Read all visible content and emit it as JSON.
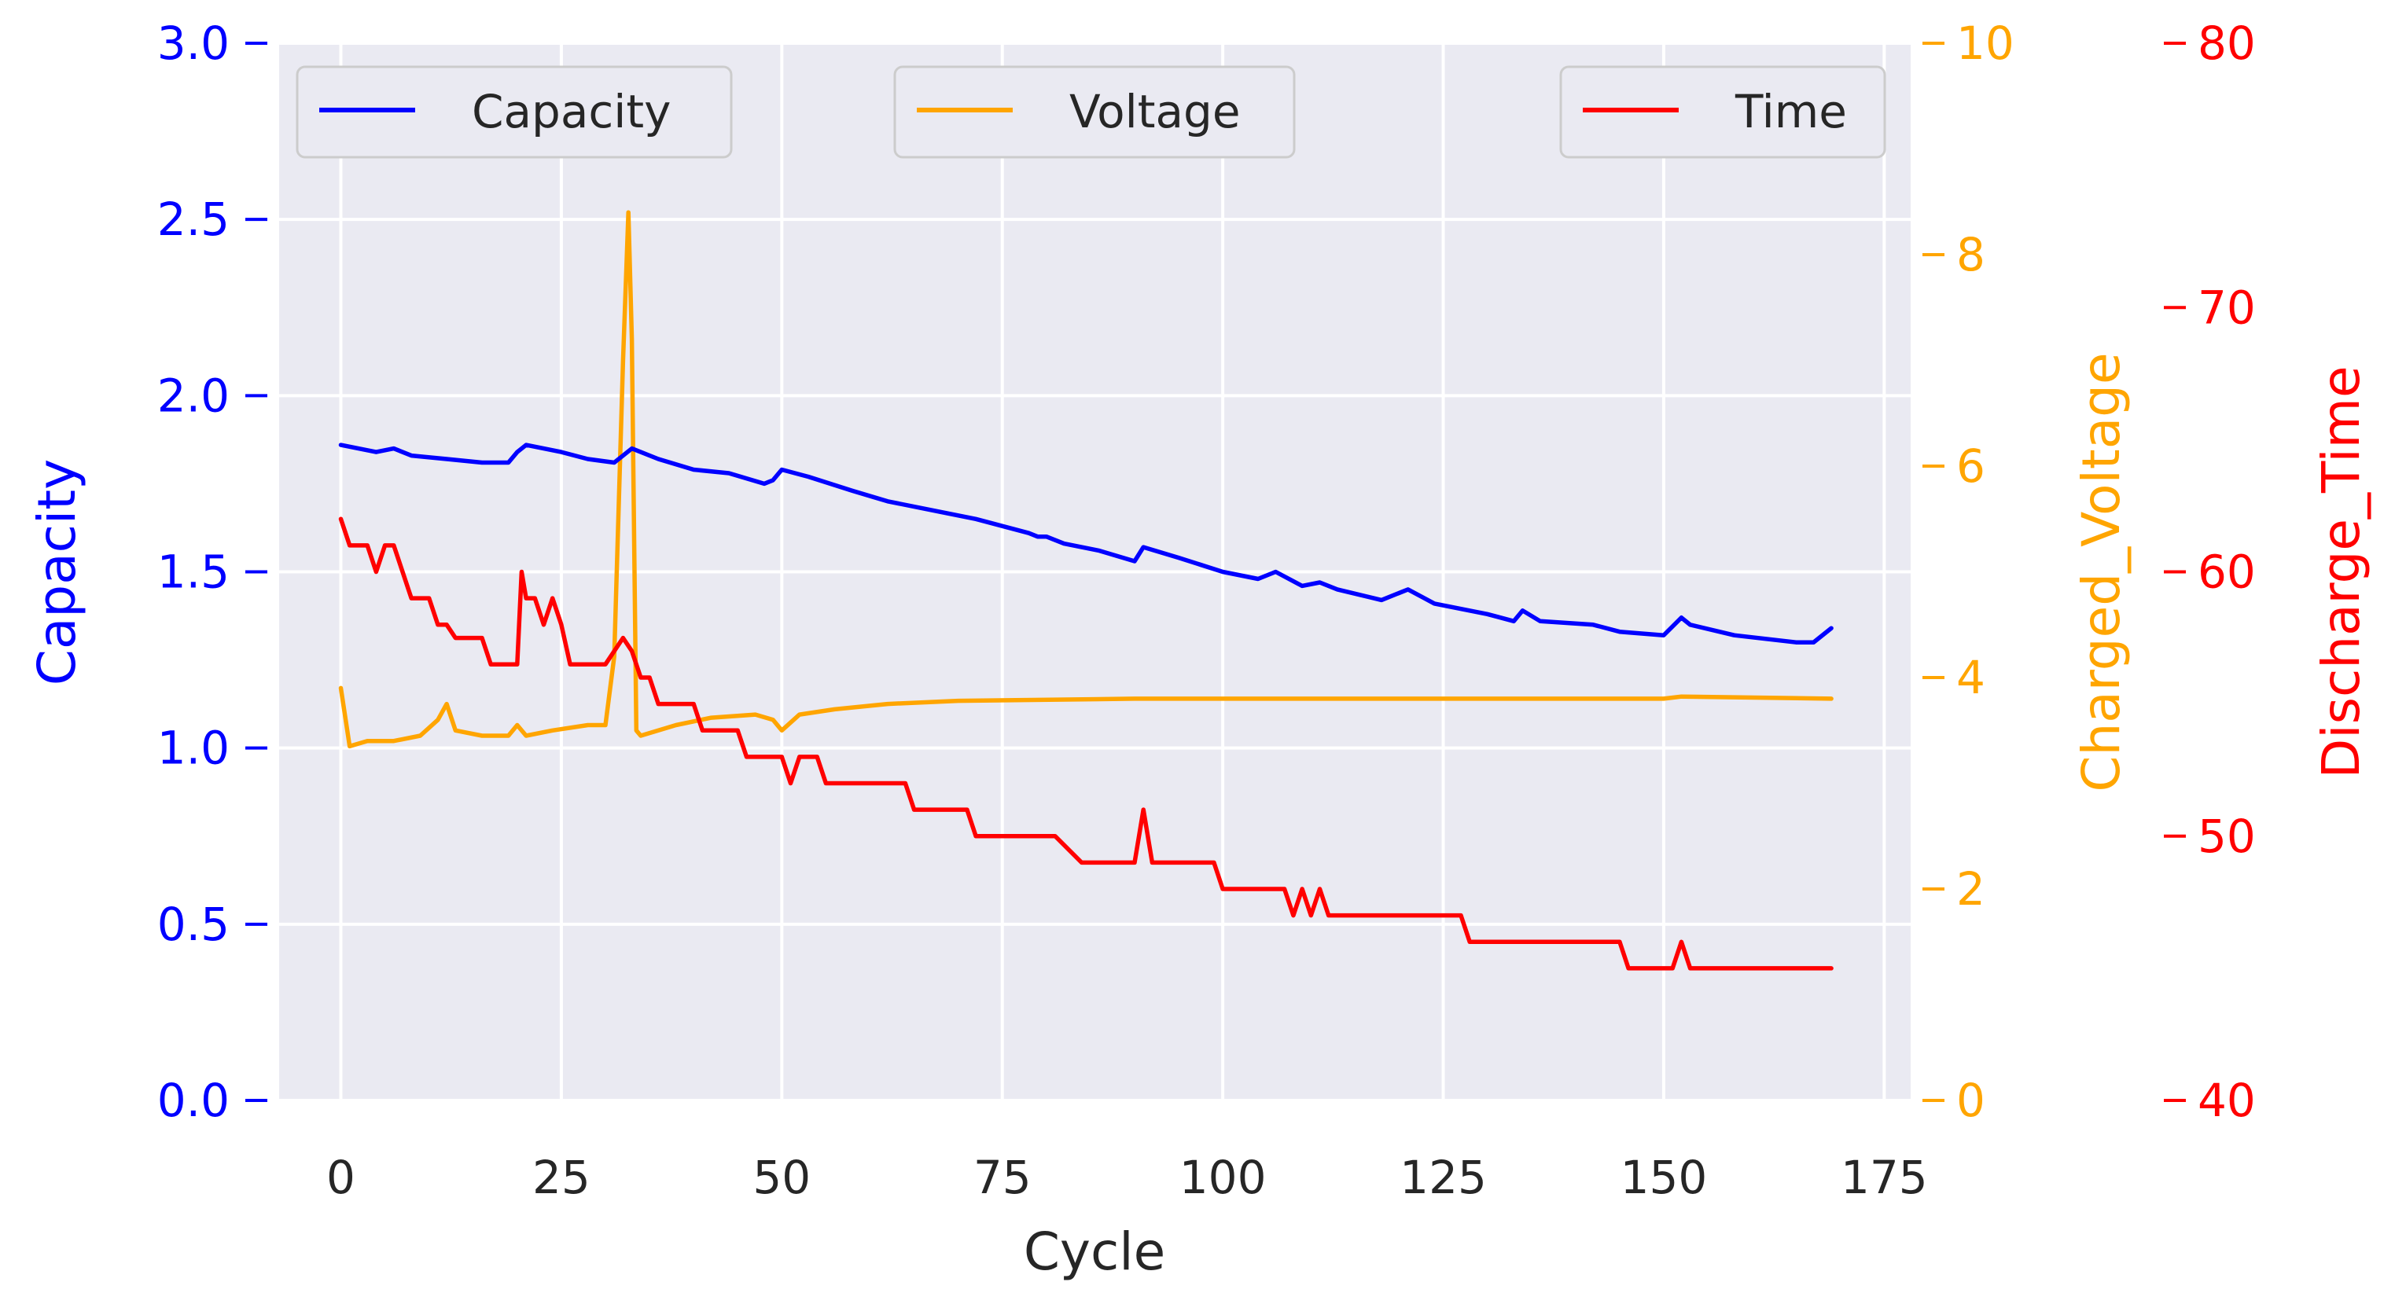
{
  "chart_data": {
    "type": "line",
    "xlabel": "Cycle",
    "xlim": [
      -7,
      178
    ],
    "xticks": [
      0,
      25,
      50,
      75,
      100,
      125,
      150,
      175
    ],
    "axes": {
      "capacity": {
        "label": "Capacity",
        "ylim": [
          0,
          3.0
        ],
        "ticks": [
          "0.0",
          "0.5",
          "1.0",
          "1.5",
          "2.0",
          "2.5",
          "3.0"
        ],
        "color": "#0000ff"
      },
      "voltage": {
        "label": "Charged_Voltage",
        "ylim": [
          0,
          10
        ],
        "ticks": [
          "0",
          "2",
          "4",
          "6",
          "8",
          "10"
        ],
        "color": "#ffa500"
      },
      "time": {
        "label": "Discharge_Time",
        "ylim": [
          40,
          80
        ],
        "ticks": [
          "40",
          "50",
          "60",
          "70",
          "80"
        ],
        "color": "#ff0000"
      }
    },
    "legend": [
      {
        "label": "Capacity",
        "color": "#0000ff",
        "position": "upper-left"
      },
      {
        "label": "Voltage",
        "color": "#ffa500",
        "position": "upper-center"
      },
      {
        "label": "Time",
        "color": "#ff0000",
        "position": "upper-right"
      }
    ],
    "grid": true,
    "series": [
      {
        "name": "Capacity",
        "axis": "capacity",
        "color": "#0000ff",
        "points": [
          [
            0,
            1.86
          ],
          [
            2,
            1.85
          ],
          [
            4,
            1.84
          ],
          [
            6,
            1.85
          ],
          [
            8,
            1.83
          ],
          [
            12,
            1.82
          ],
          [
            16,
            1.81
          ],
          [
            19,
            1.81
          ],
          [
            20,
            1.84
          ],
          [
            21,
            1.86
          ],
          [
            23,
            1.85
          ],
          [
            25,
            1.84
          ],
          [
            28,
            1.82
          ],
          [
            31,
            1.81
          ],
          [
            33,
            1.85
          ],
          [
            36,
            1.82
          ],
          [
            40,
            1.79
          ],
          [
            44,
            1.78
          ],
          [
            48,
            1.75
          ],
          [
            49,
            1.76
          ],
          [
            50,
            1.79
          ],
          [
            53,
            1.77
          ],
          [
            58,
            1.73
          ],
          [
            62,
            1.7
          ],
          [
            68,
            1.67
          ],
          [
            72,
            1.65
          ],
          [
            78,
            1.61
          ],
          [
            79,
            1.6
          ],
          [
            80,
            1.6
          ],
          [
            82,
            1.58
          ],
          [
            86,
            1.56
          ],
          [
            90,
            1.53
          ],
          [
            91,
            1.57
          ],
          [
            95,
            1.54
          ],
          [
            100,
            1.5
          ],
          [
            104,
            1.48
          ],
          [
            106,
            1.5
          ],
          [
            109,
            1.46
          ],
          [
            111,
            1.47
          ],
          [
            113,
            1.45
          ],
          [
            118,
            1.42
          ],
          [
            121,
            1.45
          ],
          [
            124,
            1.41
          ],
          [
            130,
            1.38
          ],
          [
            133,
            1.36
          ],
          [
            134,
            1.39
          ],
          [
            136,
            1.36
          ],
          [
            142,
            1.35
          ],
          [
            145,
            1.33
          ],
          [
            150,
            1.32
          ],
          [
            152,
            1.37
          ],
          [
            153,
            1.35
          ],
          [
            158,
            1.32
          ],
          [
            165,
            1.3
          ],
          [
            167,
            1.3
          ],
          [
            169,
            1.34
          ]
        ]
      },
      {
        "name": "Voltage",
        "axis": "voltage",
        "color": "#ffa500",
        "points": [
          [
            0,
            3.9
          ],
          [
            1,
            3.35
          ],
          [
            3,
            3.4
          ],
          [
            6,
            3.4
          ],
          [
            9,
            3.45
          ],
          [
            11,
            3.6
          ],
          [
            12,
            3.75
          ],
          [
            13,
            3.5
          ],
          [
            16,
            3.45
          ],
          [
            19,
            3.45
          ],
          [
            20,
            3.55
          ],
          [
            21,
            3.45
          ],
          [
            24,
            3.5
          ],
          [
            28,
            3.55
          ],
          [
            30,
            3.55
          ],
          [
            31,
            4.2
          ],
          [
            32,
            7.0
          ],
          [
            32.6,
            8.4
          ],
          [
            33,
            7.2
          ],
          [
            33.5,
            3.5
          ],
          [
            34,
            3.45
          ],
          [
            38,
            3.55
          ],
          [
            42,
            3.62
          ],
          [
            47,
            3.65
          ],
          [
            49,
            3.6
          ],
          [
            50,
            3.5
          ],
          [
            52,
            3.65
          ],
          [
            56,
            3.7
          ],
          [
            62,
            3.75
          ],
          [
            70,
            3.78
          ],
          [
            90,
            3.8
          ],
          [
            120,
            3.8
          ],
          [
            150,
            3.8
          ],
          [
            152,
            3.82
          ],
          [
            169,
            3.8
          ]
        ]
      },
      {
        "name": "Time",
        "axis": "time",
        "color": "#ff0000",
        "points": [
          [
            0,
            62
          ],
          [
            1,
            61
          ],
          [
            3,
            61
          ],
          [
            4,
            60
          ],
          [
            5,
            61
          ],
          [
            6,
            61
          ],
          [
            7,
            60
          ],
          [
            8,
            59
          ],
          [
            10,
            59
          ],
          [
            11,
            58
          ],
          [
            12,
            58
          ],
          [
            13,
            57.5
          ],
          [
            16,
            57.5
          ],
          [
            17,
            56.5
          ],
          [
            20,
            56.5
          ],
          [
            20.5,
            60
          ],
          [
            21,
            59
          ],
          [
            22,
            59
          ],
          [
            23,
            58
          ],
          [
            24,
            59
          ],
          [
            25,
            58
          ],
          [
            26,
            56.5
          ],
          [
            30,
            56.5
          ],
          [
            31,
            57
          ],
          [
            32,
            57.5
          ],
          [
            33,
            57
          ],
          [
            34,
            56
          ],
          [
            35,
            56
          ],
          [
            36,
            55
          ],
          [
            40,
            55
          ],
          [
            41,
            54
          ],
          [
            45,
            54
          ],
          [
            46,
            53
          ],
          [
            50,
            53
          ],
          [
            51,
            52
          ],
          [
            52,
            53
          ],
          [
            54,
            53
          ],
          [
            55,
            52
          ],
          [
            64,
            52
          ],
          [
            65,
            51
          ],
          [
            71,
            51
          ],
          [
            72,
            50
          ],
          [
            81,
            50
          ],
          [
            84,
            49
          ],
          [
            90,
            49
          ],
          [
            91,
            51
          ],
          [
            92,
            49
          ],
          [
            99,
            49
          ],
          [
            100,
            48
          ],
          [
            107,
            48
          ],
          [
            108,
            47
          ],
          [
            109,
            48
          ],
          [
            110,
            47
          ],
          [
            111,
            48
          ],
          [
            112,
            47
          ],
          [
            127,
            47
          ],
          [
            128,
            46
          ],
          [
            145,
            46
          ],
          [
            146,
            45
          ],
          [
            151,
            45
          ],
          [
            152,
            46
          ],
          [
            153,
            45
          ],
          [
            169,
            45
          ]
        ]
      }
    ]
  }
}
